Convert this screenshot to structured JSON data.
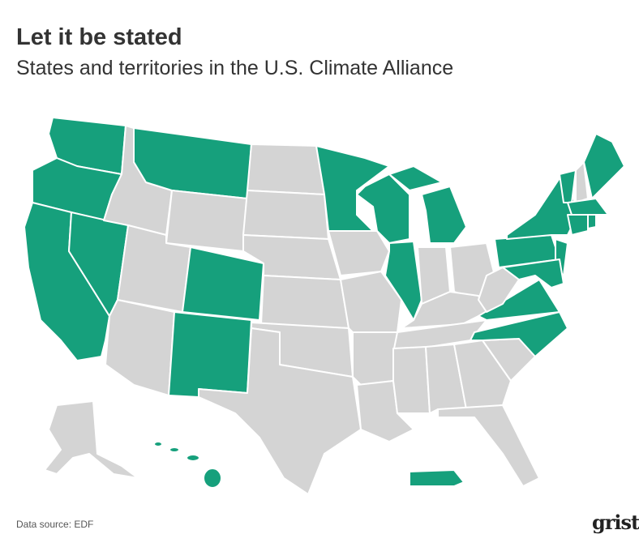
{
  "title": "Let it be stated",
  "subtitle": "States and territories in the U.S. Climate Alliance",
  "source": "Data source: EDF",
  "logo": "grist",
  "map": {
    "member_color": "#16a07c",
    "nonmember_color": "#d4d4d4",
    "border_color": "#ffffff"
  }
}
